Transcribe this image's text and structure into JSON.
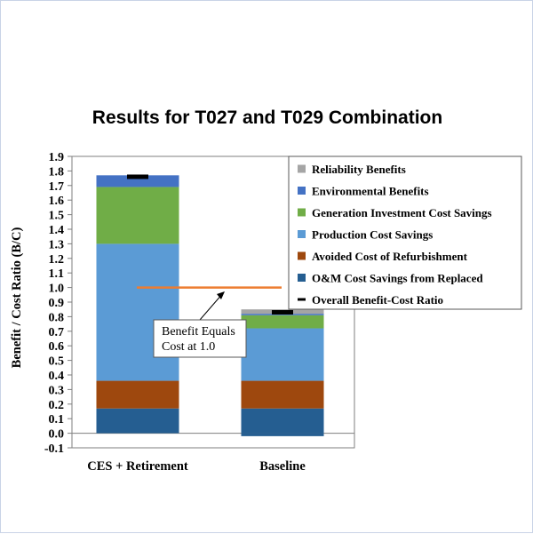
{
  "chart_data": {
    "type": "bar",
    "stacked": true,
    "title": "Results for T027 and T029 Combination",
    "xlabel": "",
    "ylabel": "Benefit / Cost Ratio (B/C)",
    "ylim": [
      -0.1,
      1.9
    ],
    "y_ticks": [
      "-0.1",
      "0.0",
      "0.1",
      "0.2",
      "0.3",
      "0.4",
      "0.5",
      "0.6",
      "0.7",
      "0.8",
      "0.9",
      "1.0",
      "1.1",
      "1.2",
      "1.3",
      "1.4",
      "1.5",
      "1.6",
      "1.7",
      "1.8",
      "1.9"
    ],
    "categories": [
      "CES + Retirement",
      "Baseline"
    ],
    "series": [
      {
        "name": "O&M Cost Savings from Replaced",
        "color": "#255e91",
        "values": [
          0.17,
          0.17
        ]
      },
      {
        "name": "Avoided Cost of Refurbishment",
        "color": "#9e480e",
        "values": [
          0.19,
          0.19
        ]
      },
      {
        "name": "Production Cost Savings",
        "color": "#5b9bd5",
        "values": [
          0.94,
          0.36
        ]
      },
      {
        "name": "Generation Investment Cost Savings",
        "color": "#70ad47",
        "values": [
          0.39,
          0.09
        ]
      },
      {
        "name": "Environmental Benefits",
        "color": "#4472c4",
        "values": [
          0.08,
          0.01
        ]
      },
      {
        "name": "Reliability Benefits",
        "color": "#a5a5a5",
        "values": [
          0.0,
          0.03
        ]
      }
    ],
    "negative_values": [
      0.0,
      -0.02
    ],
    "overall_bc_ratio": {
      "name": "Overall Benefit-Cost Ratio",
      "color": "#000000",
      "values": [
        1.76,
        0.83
      ]
    },
    "reference_line": {
      "value": 1.0,
      "color": "#ed7d31"
    },
    "annotation": {
      "lines": [
        "Benefit Equals",
        "Cost at 1.0"
      ]
    },
    "legend_position": "top-right",
    "legend_order": [
      "Reliability Benefits",
      "Environmental Benefits",
      "Generation Investment Cost Savings",
      "Production Cost Savings",
      "Avoided Cost of Refurbishment",
      "O&M Cost Savings from Replaced",
      "Overall Benefit-Cost Ratio"
    ],
    "grid": false
  }
}
